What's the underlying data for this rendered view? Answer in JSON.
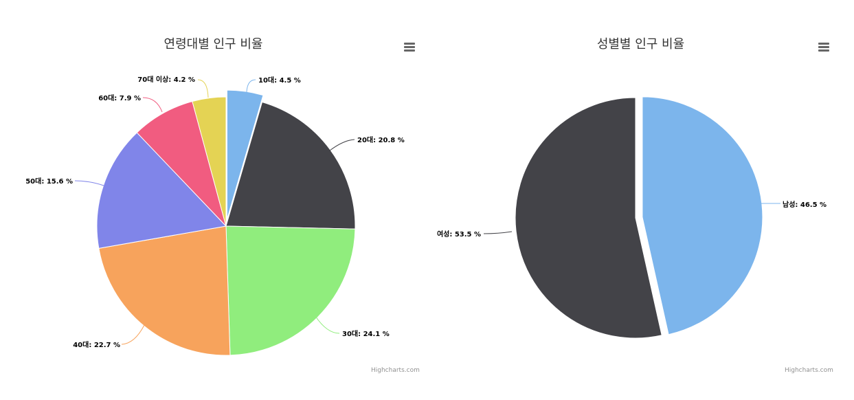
{
  "credits": "Highcharts.com",
  "chart_data": [
    {
      "type": "pie",
      "title": "연령대별 인구 비율",
      "label_suffix": " %",
      "slices": [
        {
          "name": "10대",
          "value": 4.5,
          "color": "#7cb5ec",
          "sliced": true
        },
        {
          "name": "20대",
          "value": 20.8,
          "color": "#434348",
          "sliced": false
        },
        {
          "name": "30대",
          "value": 24.1,
          "color": "#90ed7d",
          "sliced": false
        },
        {
          "name": "40대",
          "value": 22.7,
          "color": "#f7a35c",
          "sliced": false
        },
        {
          "name": "50대",
          "value": 15.6,
          "color": "#8085e9",
          "sliced": false
        },
        {
          "name": "60대",
          "value": 7.9,
          "color": "#f15c80",
          "sliced": false
        },
        {
          "name": "70대 이상",
          "value": 4.2,
          "color": "#e4d354",
          "sliced": false
        }
      ]
    },
    {
      "type": "pie",
      "title": "성별별 인구 비율",
      "label_suffix": " %",
      "slices": [
        {
          "name": "남성",
          "value": 46.5,
          "color": "#7cb5ec",
          "sliced": true
        },
        {
          "name": "여성",
          "value": 53.5,
          "color": "#434348",
          "sliced": false
        }
      ]
    }
  ]
}
